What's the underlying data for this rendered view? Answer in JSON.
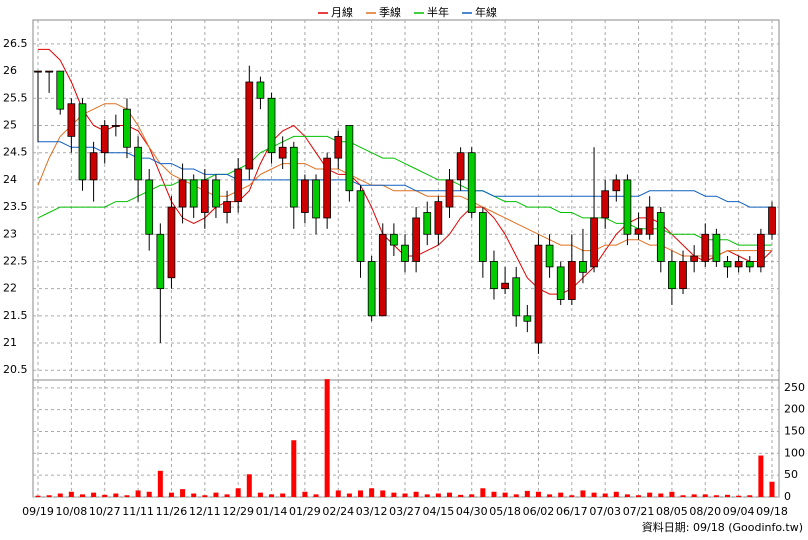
{
  "chart_data": {
    "type": "candlestick",
    "legend": "top",
    "grid": true,
    "source": "資料日期: 09/18 (Goodinfo.tw)",
    "up_color": "#cc0000",
    "down_color": "#00cc00",
    "categories": [
      "09/19",
      null,
      null,
      "10/08",
      null,
      null,
      "10/27",
      null,
      null,
      "11/11",
      null,
      null,
      "11/26",
      null,
      null,
      "12/11",
      null,
      null,
      "12/29",
      null,
      null,
      "01/14",
      null,
      null,
      "01/29",
      null,
      null,
      "02/24",
      null,
      null,
      "03/12",
      null,
      null,
      "03/27",
      null,
      null,
      "04/15",
      null,
      null,
      "04/30",
      null,
      null,
      "05/18",
      null,
      null,
      "06/02",
      null,
      null,
      "06/17",
      null,
      null,
      "07/03",
      null,
      null,
      "07/21",
      null,
      null,
      "08/05",
      null,
      null,
      "08/20",
      null,
      null,
      "09/04",
      null,
      null,
      "09/18"
    ],
    "open": [
      26.0,
      26.0,
      26.0,
      24.8,
      25.4,
      24.0,
      24.5,
      25.0,
      25.3,
      24.6,
      24.0,
      23.0,
      22.2,
      23.5,
      24.0,
      23.4,
      24.0,
      23.4,
      23.6,
      24.2,
      25.8,
      25.5,
      24.4,
      24.6,
      23.4,
      24.0,
      23.3,
      24.4,
      25.0,
      23.8,
      22.5,
      21.5,
      23.0,
      22.8,
      22.5,
      23.4,
      23.0,
      23.5,
      24.0,
      24.5,
      23.4,
      22.5,
      22.0,
      22.2,
      21.5,
      21.0,
      22.8,
      22.4,
      21.8,
      22.5,
      22.4,
      23.3,
      23.8,
      24.0,
      23.0,
      23.0,
      23.4,
      22.5,
      22.0,
      22.5,
      22.5,
      23.0,
      22.5,
      22.4,
      22.5,
      22.4,
      23.0
    ],
    "high": [
      26.0,
      26.0,
      26.0,
      25.5,
      25.5,
      24.7,
      25.1,
      25.2,
      25.5,
      24.8,
      24.2,
      23.2,
      23.7,
      24.3,
      24.1,
      24.2,
      24.1,
      23.8,
      24.4,
      26.1,
      25.9,
      25.6,
      24.8,
      24.7,
      24.1,
      24.1,
      24.5,
      24.9,
      25.0,
      23.9,
      22.6,
      23.2,
      23.2,
      23.0,
      23.5,
      23.6,
      23.7,
      24.2,
      24.6,
      24.6,
      23.5,
      22.7,
      22.4,
      22.4,
      21.7,
      23.0,
      23.0,
      22.5,
      23.0,
      23.1,
      24.6,
      24.0,
      24.1,
      24.1,
      23.4,
      23.7,
      23.5,
      22.7,
      22.7,
      22.8,
      23.2,
      23.1,
      22.6,
      22.6,
      22.6,
      23.1,
      23.6
    ],
    "low": [
      24.7,
      25.6,
      25.2,
      24.5,
      23.8,
      23.6,
      24.3,
      24.8,
      24.4,
      23.6,
      22.7,
      21.0,
      22.0,
      23.2,
      23.3,
      23.1,
      23.3,
      23.2,
      23.4,
      24.0,
      25.3,
      24.3,
      24.2,
      23.1,
      23.2,
      23.0,
      23.1,
      24.2,
      23.6,
      22.2,
      21.4,
      21.5,
      22.6,
      22.3,
      22.3,
      22.8,
      22.8,
      23.3,
      23.8,
      23.3,
      22.2,
      21.8,
      21.9,
      21.3,
      21.2,
      20.8,
      22.2,
      21.7,
      21.7,
      22.1,
      22.3,
      23.1,
      23.6,
      22.8,
      22.9,
      22.9,
      22.3,
      21.7,
      21.9,
      22.3,
      22.4,
      22.4,
      22.2,
      22.3,
      22.3,
      22.3,
      22.9
    ],
    "close": [
      26.0,
      26.0,
      25.3,
      25.4,
      24.0,
      24.5,
      25.0,
      25.0,
      24.6,
      24.0,
      23.0,
      22.0,
      23.5,
      24.0,
      23.5,
      24.0,
      23.5,
      23.6,
      24.2,
      25.8,
      25.5,
      24.5,
      24.6,
      23.5,
      24.0,
      23.3,
      24.4,
      24.8,
      23.8,
      22.5,
      21.5,
      23.0,
      22.8,
      22.5,
      23.3,
      23.0,
      23.6,
      24.0,
      24.5,
      23.4,
      22.5,
      22.0,
      22.1,
      21.5,
      21.4,
      22.8,
      22.4,
      21.8,
      22.5,
      22.3,
      23.3,
      23.8,
      24.0,
      23.0,
      23.1,
      23.5,
      22.5,
      22.0,
      22.5,
      22.6,
      23.0,
      22.5,
      22.4,
      22.5,
      22.4,
      23.0,
      23.5
    ],
    "series": [
      {
        "name": "月線",
        "color": "#e00000",
        "values": [
          26.4,
          26.4,
          26.2,
          25.8,
          25.3,
          25.0,
          24.9,
          25.0,
          25.0,
          24.9,
          24.6,
          24.1,
          23.6,
          23.3,
          23.2,
          23.3,
          23.5,
          23.6,
          23.6,
          23.8,
          24.3,
          24.7,
          24.9,
          25.0,
          24.8,
          24.5,
          24.2,
          24.1,
          24.1,
          23.9,
          23.5,
          23.0,
          22.8,
          22.6,
          22.6,
          22.7,
          22.8,
          23.0,
          23.3,
          23.5,
          23.5,
          23.3,
          23.0,
          22.6,
          22.2,
          22.0,
          21.9,
          21.9,
          22.0,
          22.2,
          22.4,
          22.7,
          23.0,
          23.2,
          23.3,
          23.3,
          23.2,
          23.0,
          22.8,
          22.6,
          22.5,
          22.6,
          22.7,
          22.6,
          22.5,
          22.5,
          22.7
        ]
      },
      {
        "name": "季線",
        "color": "#e07020",
        "values": [
          23.9,
          24.4,
          24.8,
          25.0,
          25.2,
          25.3,
          25.4,
          25.4,
          25.3,
          25.0,
          24.6,
          24.3,
          24.1,
          24.0,
          23.9,
          23.8,
          23.7,
          23.7,
          23.8,
          23.9,
          24.1,
          24.2,
          24.3,
          24.3,
          24.3,
          24.2,
          24.2,
          24.2,
          24.1,
          24.0,
          23.9,
          23.9,
          23.8,
          23.8,
          23.8,
          23.7,
          23.7,
          23.7,
          23.7,
          23.6,
          23.5,
          23.4,
          23.3,
          23.2,
          23.1,
          23.0,
          22.9,
          22.8,
          22.8,
          22.7,
          22.7,
          22.8,
          22.8,
          22.9,
          22.9,
          22.8,
          22.8,
          22.7,
          22.6,
          22.6,
          22.6,
          22.6,
          22.7,
          22.7,
          22.7,
          22.7,
          22.7
        ]
      },
      {
        "name": "半年",
        "color": "#00c000",
        "values": [
          23.3,
          23.4,
          23.5,
          23.5,
          23.5,
          23.5,
          23.5,
          23.6,
          23.6,
          23.7,
          23.8,
          23.9,
          23.9,
          24.0,
          24.0,
          24.0,
          24.1,
          24.1,
          24.2,
          24.3,
          24.5,
          24.6,
          24.7,
          24.8,
          24.8,
          24.8,
          24.8,
          24.7,
          24.7,
          24.6,
          24.5,
          24.4,
          24.4,
          24.3,
          24.2,
          24.1,
          24.0,
          24.0,
          23.9,
          23.8,
          23.8,
          23.7,
          23.6,
          23.6,
          23.5,
          23.5,
          23.5,
          23.4,
          23.4,
          23.3,
          23.3,
          23.3,
          23.2,
          23.2,
          23.1,
          23.1,
          23.1,
          23.0,
          23.0,
          23.0,
          22.9,
          22.9,
          22.9,
          22.8,
          22.8,
          22.8,
          22.8
        ]
      },
      {
        "name": "年線",
        "color": "#1060c0",
        "values": [
          24.7,
          24.7,
          24.7,
          24.6,
          24.6,
          24.6,
          24.5,
          24.5,
          24.5,
          24.4,
          24.4,
          24.3,
          24.3,
          24.2,
          24.2,
          24.1,
          24.1,
          24.1,
          24.0,
          24.0,
          24.0,
          24.0,
          24.0,
          24.0,
          24.0,
          24.0,
          24.0,
          24.0,
          24.0,
          23.9,
          23.9,
          23.9,
          23.9,
          23.9,
          23.8,
          23.8,
          23.8,
          23.8,
          23.8,
          23.8,
          23.8,
          23.7,
          23.7,
          23.7,
          23.7,
          23.7,
          23.7,
          23.7,
          23.7,
          23.7,
          23.7,
          23.7,
          23.7,
          23.7,
          23.7,
          23.8,
          23.8,
          23.8,
          23.8,
          23.8,
          23.7,
          23.7,
          23.6,
          23.6,
          23.5,
          23.5,
          23.5
        ]
      }
    ],
    "volume": {
      "color": "#ff0000",
      "axis": "y2",
      "values": [
        3,
        4,
        8,
        12,
        6,
        10,
        5,
        8,
        4,
        15,
        12,
        60,
        10,
        18,
        8,
        4,
        10,
        6,
        20,
        52,
        10,
        6,
        8,
        130,
        12,
        6,
        270,
        15,
        8,
        15,
        20,
        15,
        10,
        8,
        12,
        6,
        8,
        10,
        5,
        6,
        20,
        12,
        10,
        6,
        14,
        12,
        6,
        10,
        4,
        15,
        10,
        8,
        12,
        6,
        4,
        10,
        8,
        12,
        4,
        6,
        6,
        4,
        5,
        3,
        4,
        95,
        35
      ]
    },
    "ylim": [
      20.32,
      26.94
    ],
    "yticks": [
      20.5,
      21,
      21.5,
      22,
      22.5,
      23,
      23.5,
      24,
      24.5,
      25,
      25.5,
      26,
      26.5
    ],
    "y2lim": [
      0,
      268
    ],
    "y2ticks": [
      0,
      50,
      100,
      150,
      200,
      250
    ]
  }
}
